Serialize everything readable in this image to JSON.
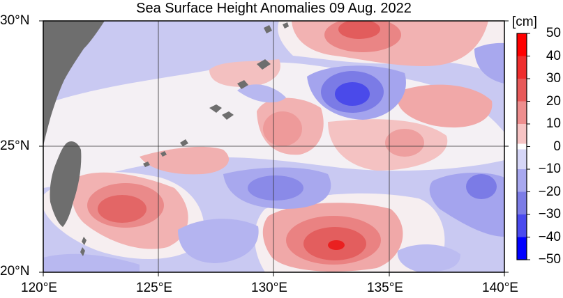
{
  "title": "Sea Surface Height Anomalies  09 Aug. 2022",
  "unit_label": "[cm]",
  "axes": {
    "lon_ticks": [
      "120°E",
      "125°E",
      "130°E",
      "135°E",
      "140°E"
    ],
    "lat_ticks": [
      "30°N",
      "25°N",
      "20°N"
    ]
  },
  "colorbar": {
    "ticks": [
      "50",
      "40",
      "30",
      "20",
      "10",
      "0",
      "−10",
      "−20",
      "−30",
      "−40",
      "−50"
    ],
    "range_cm": [
      -50,
      50
    ],
    "colors_top_to_bottom": [
      "#ff0000",
      "#ef2e2e",
      "#e85a5a",
      "#ee8e8e",
      "#f7c4c4",
      "#ffffff",
      "#d6d6f7",
      "#a8a8ef",
      "#7c7ce6",
      "#4a4aee",
      "#0000ff"
    ]
  },
  "chart_data": {
    "type": "heatmap",
    "title": "Sea Surface Height Anomalies  09 Aug. 2022",
    "xlim": [
      120,
      140
    ],
    "ylim": [
      20,
      30
    ],
    "grid": true,
    "legend": "colorbar-right",
    "unit": "cm",
    "anomaly_centers": [
      {
        "lon": 132.8,
        "lat": 21.1,
        "value_cm": 35
      },
      {
        "lon": 123.6,
        "lat": 22.3,
        "value_cm": 25
      },
      {
        "lon": 133.3,
        "lat": 29.2,
        "value_cm": 30
      },
      {
        "lon": 130.0,
        "lat": 25.6,
        "value_cm": 15
      },
      {
        "lon": 137.5,
        "lat": 26.8,
        "value_cm": 15
      },
      {
        "lon": 135.0,
        "lat": 25.3,
        "value_cm": 12
      },
      {
        "lon": 127.5,
        "lat": 25.2,
        "value_cm": 10
      },
      {
        "lon": 133.2,
        "lat": 27.3,
        "value_cm": -30
      },
      {
        "lon": 130.0,
        "lat": 23.0,
        "value_cm": -22
      },
      {
        "lon": 126.8,
        "lat": 21.5,
        "value_cm": -15
      },
      {
        "lon": 138.2,
        "lat": 23.0,
        "value_cm": -20
      },
      {
        "lon": 139.2,
        "lat": 27.8,
        "value_cm": -12
      },
      {
        "lon": 129.0,
        "lat": 28.5,
        "value_cm": -12
      },
      {
        "lon": 136.0,
        "lat": 20.5,
        "value_cm": -10
      }
    ]
  }
}
